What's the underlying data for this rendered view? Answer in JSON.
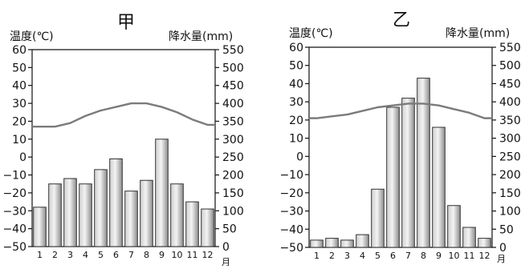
{
  "chart_data": [
    {
      "type": "bar+line",
      "title": "甲",
      "ylabel_left": "温度(℃)",
      "ylabel_right": "降水量(mm)",
      "x_unit": "月",
      "categories": [
        "1",
        "2",
        "3",
        "4",
        "5",
        "6",
        "7",
        "8",
        "9",
        "10",
        "11",
        "12"
      ],
      "y_left_ticks": [
        "60",
        "50",
        "40",
        "30",
        "20",
        "10",
        "0",
        "−10",
        "−20",
        "−30",
        "−40",
        "−50"
      ],
      "y_right_ticks": [
        "550",
        "500",
        "450",
        "400",
        "350",
        "300",
        "250",
        "200",
        "150",
        "100",
        "50",
        "0"
      ],
      "y_left_range": [
        -50,
        60
      ],
      "y_right_range": [
        0,
        550
      ],
      "series": [
        {
          "axis": "right",
          "type": "bar",
          "values": [
            110,
            175,
            190,
            175,
            215,
            245,
            155,
            185,
            300,
            175,
            125,
            105
          ]
        },
        {
          "axis": "left",
          "type": "line",
          "values": [
            17,
            17,
            19,
            23,
            26,
            28,
            30,
            30,
            28,
            25,
            21,
            18
          ]
        }
      ],
      "grid": false
    },
    {
      "type": "bar+line",
      "title": "乙",
      "ylabel_left": "温度(℃)",
      "ylabel_right": "降水量(mm)",
      "x_unit": "月",
      "categories": [
        "1",
        "2",
        "3",
        "4",
        "5",
        "6",
        "7",
        "8",
        "9",
        "10",
        "11",
        "12"
      ],
      "y_left_ticks": [
        "60",
        "50",
        "40",
        "30",
        "20",
        "10",
        "0",
        "−10",
        "−20",
        "−30",
        "−40",
        "−50"
      ],
      "y_right_ticks": [
        "550",
        "500",
        "450",
        "400",
        "350",
        "300",
        "250",
        "200",
        "150",
        "100",
        "50",
        "0"
      ],
      "y_left_range": [
        -50,
        60
      ],
      "y_right_range": [
        0,
        550
      ],
      "series": [
        {
          "axis": "right",
          "type": "bar",
          "values": [
            20,
            25,
            20,
            35,
            160,
            385,
            410,
            465,
            330,
            115,
            55,
            25
          ]
        },
        {
          "axis": "left",
          "type": "line",
          "values": [
            21,
            22,
            23,
            25,
            27,
            28,
            29,
            29,
            28,
            26,
            24,
            21
          ]
        }
      ],
      "grid": false
    }
  ],
  "colors": {
    "bar_fill_light": "#f3f3f3",
    "bar_fill_dark": "#8c8c8c",
    "bar_stroke": "#333333",
    "line": "#7b7b7b",
    "axis": "#111111"
  }
}
